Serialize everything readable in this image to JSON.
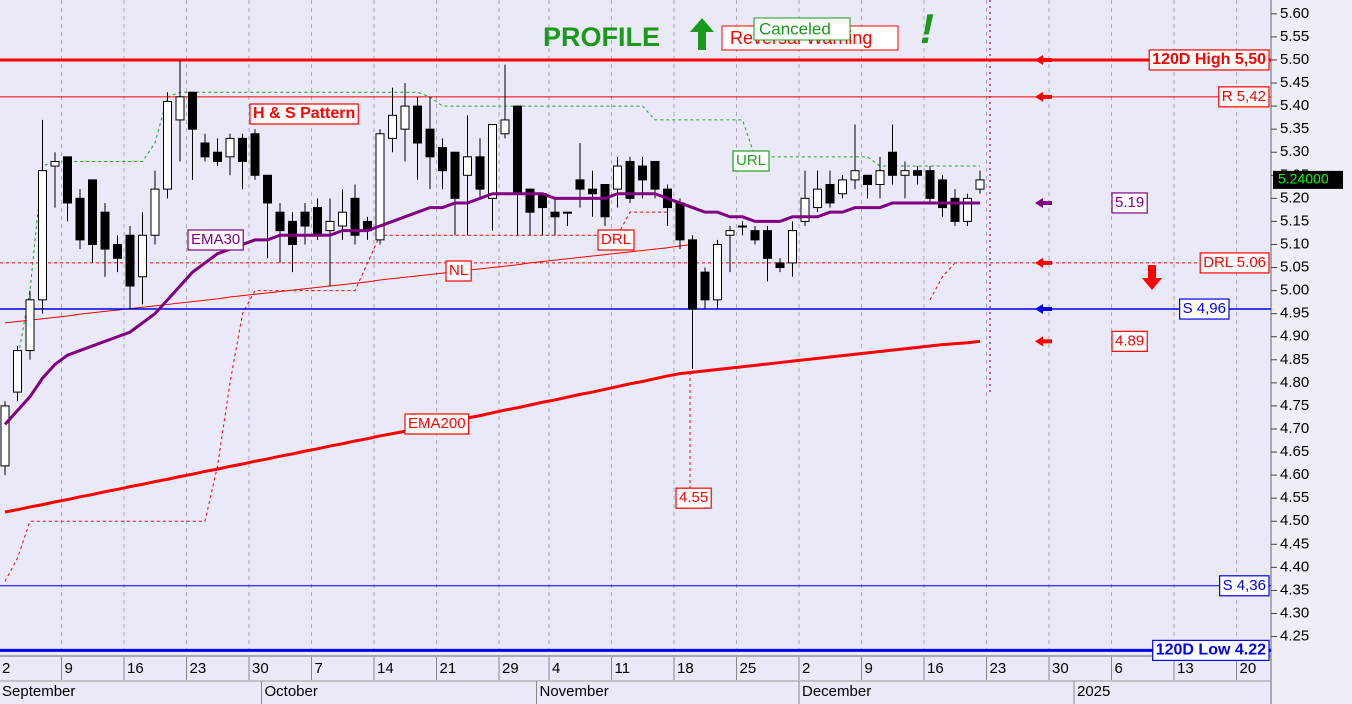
{
  "chart_data": {
    "type": "candlestick",
    "x": [
      "Sep 2",
      "Sep 3",
      "Sep 4",
      "Sep 5",
      "Sep 6",
      "Sep 9",
      "Sep 10",
      "Sep 11",
      "Sep 12",
      "Sep 13",
      "Sep 16",
      "Sep 17",
      "Sep 18",
      "Sep 19",
      "Sep 20",
      "Sep 23",
      "Sep 24",
      "Sep 25",
      "Sep 26",
      "Sep 27",
      "Sep 30",
      "Oct 1",
      "Oct 2",
      "Oct 3",
      "Oct 4",
      "Oct 7",
      "Oct 8",
      "Oct 9",
      "Oct 10",
      "Oct 11",
      "Oct 14",
      "Oct 15",
      "Oct 16",
      "Oct 17",
      "Oct 18",
      "Oct 21",
      "Oct 22",
      "Oct 23",
      "Oct 24",
      "Oct 25",
      "Oct 29",
      "Oct 30",
      "Oct 31",
      "Nov 1",
      "Nov 4",
      "Nov 5",
      "Nov 6",
      "Nov 7",
      "Nov 8",
      "Nov 11",
      "Nov 12",
      "Nov 13",
      "Nov 14",
      "Nov 15",
      "Nov 18",
      "Nov 19",
      "Nov 20",
      "Nov 21",
      "Nov 22",
      "Nov 25",
      "Nov 26",
      "Nov 27",
      "Nov 28",
      "Nov 29",
      "Dec 2",
      "Dec 3",
      "Dec 4",
      "Dec 5",
      "Dec 6",
      "Dec 9",
      "Dec 10",
      "Dec 11",
      "Dec 12",
      "Dec 13",
      "Dec 16",
      "Dec 17",
      "Dec 18",
      "Dec 19",
      "Dec 20"
    ],
    "open": [
      4.62,
      4.78,
      4.87,
      4.98,
      5.27,
      5.29,
      5.2,
      5.24,
      5.17,
      5.1,
      5.12,
      5.03,
      5.12,
      5.22,
      5.37,
      5.43,
      5.32,
      5.3,
      5.29,
      5.33,
      5.34,
      5.25,
      5.17,
      5.15,
      5.17,
      5.18,
      5.13,
      5.14,
      5.2,
      5.15,
      5.11,
      5.33,
      5.35,
      5.4,
      5.35,
      5.31,
      5.3,
      5.25,
      5.29,
      5.2,
      5.34,
      5.4,
      5.22,
      5.21,
      5.17,
      5.17,
      5.24,
      5.22,
      5.23,
      5.22,
      5.28,
      5.27,
      5.28,
      5.22,
      5.19,
      5.11,
      5.04,
      4.98,
      5.12,
      5.14,
      5.13,
      5.13,
      5.06,
      5.06,
      5.15,
      5.18,
      5.23,
      5.21,
      5.24,
      5.25,
      5.23,
      5.3,
      5.25,
      5.26,
      5.26,
      5.24,
      5.2,
      5.15,
      5.22
    ],
    "high": [
      4.76,
      4.88,
      5.0,
      5.37,
      5.3,
      5.29,
      5.22,
      5.24,
      5.19,
      5.12,
      5.14,
      5.17,
      5.26,
      5.43,
      5.5,
      5.43,
      5.34,
      5.33,
      5.34,
      5.34,
      5.35,
      5.25,
      5.19,
      5.17,
      5.19,
      5.2,
      5.2,
      5.22,
      5.23,
      5.16,
      5.35,
      5.44,
      5.45,
      5.42,
      5.42,
      5.33,
      5.3,
      5.38,
      5.33,
      5.36,
      5.49,
      5.4,
      5.22,
      5.21,
      5.2,
      5.17,
      5.32,
      5.26,
      5.23,
      5.29,
      5.29,
      5.29,
      5.28,
      5.23,
      5.2,
      5.12,
      5.05,
      5.11,
      5.14,
      5.15,
      5.14,
      5.14,
      5.07,
      5.15,
      5.26,
      5.26,
      5.26,
      5.25,
      5.36,
      5.25,
      5.29,
      5.36,
      5.28,
      5.27,
      5.27,
      5.25,
      5.22,
      5.21,
      5.26
    ],
    "low": [
      4.6,
      4.76,
      4.85,
      4.95,
      5.18,
      5.15,
      5.09,
      5.06,
      5.03,
      5.04,
      4.96,
      4.97,
      5.1,
      5.2,
      5.28,
      5.24,
      5.28,
      5.27,
      5.25,
      5.22,
      5.24,
      5.07,
      5.06,
      5.04,
      5.1,
      5.11,
      5.01,
      5.11,
      5.1,
      5.11,
      5.1,
      5.3,
      5.28,
      5.24,
      5.22,
      5.22,
      5.12,
      5.12,
      5.2,
      5.13,
      5.33,
      5.12,
      5.12,
      5.12,
      5.12,
      5.14,
      5.18,
      5.16,
      5.14,
      5.18,
      5.19,
      5.2,
      5.2,
      5.14,
      5.09,
      4.83,
      4.96,
      4.96,
      5.04,
      5.12,
      5.1,
      5.02,
      5.04,
      5.03,
      5.14,
      5.17,
      5.18,
      5.2,
      5.22,
      5.2,
      5.2,
      5.23,
      5.2,
      5.23,
      5.19,
      5.16,
      5.14,
      5.14,
      5.21
    ],
    "close": [
      4.75,
      4.87,
      4.98,
      5.26,
      5.28,
      5.19,
      5.11,
      5.1,
      5.09,
      5.07,
      5.01,
      5.12,
      5.22,
      5.41,
      5.42,
      5.35,
      5.29,
      5.28,
      5.33,
      5.28,
      5.25,
      5.19,
      5.13,
      5.1,
      5.14,
      5.12,
      5.15,
      5.17,
      5.12,
      5.13,
      5.34,
      5.38,
      5.4,
      5.32,
      5.29,
      5.26,
      5.2,
      5.29,
      5.22,
      5.36,
      5.37,
      5.21,
      5.17,
      5.18,
      5.16,
      5.17,
      5.22,
      5.21,
      5.16,
      5.27,
      5.2,
      5.24,
      5.22,
      5.18,
      5.11,
      4.96,
      4.98,
      5.1,
      5.13,
      5.14,
      5.11,
      5.07,
      5.05,
      5.13,
      5.2,
      5.22,
      5.19,
      5.24,
      5.26,
      5.23,
      5.26,
      5.25,
      5.26,
      5.25,
      5.2,
      5.18,
      5.15,
      5.2,
      5.24
    ],
    "series": [
      {
        "name": "EMA30",
        "color": "#800080",
        "style": "thick",
        "values": [
          4.71,
          4.74,
          4.77,
          4.81,
          4.84,
          4.86,
          4.87,
          4.88,
          4.89,
          4.9,
          4.91,
          4.93,
          4.95,
          4.98,
          5.01,
          5.04,
          5.06,
          5.08,
          5.09,
          5.1,
          5.11,
          5.11,
          5.12,
          5.12,
          5.12,
          5.12,
          5.12,
          5.13,
          5.13,
          5.13,
          5.14,
          5.15,
          5.16,
          5.17,
          5.18,
          5.18,
          5.19,
          5.19,
          5.2,
          5.21,
          5.21,
          5.21,
          5.21,
          5.21,
          5.2,
          5.2,
          5.2,
          5.2,
          5.2,
          5.21,
          5.21,
          5.21,
          5.21,
          5.2,
          5.19,
          5.18,
          5.17,
          5.17,
          5.16,
          5.16,
          5.15,
          5.15,
          5.15,
          5.16,
          5.16,
          5.16,
          5.17,
          5.17,
          5.18,
          5.18,
          5.18,
          5.19,
          5.19,
          5.19,
          5.19,
          5.19,
          5.19,
          5.19,
          5.19
        ]
      },
      {
        "name": "EMA200",
        "color": "#ff0000",
        "style": "thick",
        "values": [
          4.52,
          4.525,
          4.531,
          4.536,
          4.542,
          4.547,
          4.553,
          4.558,
          4.564,
          4.569,
          4.575,
          4.58,
          4.586,
          4.591,
          4.597,
          4.602,
          4.608,
          4.613,
          4.619,
          4.624,
          4.63,
          4.635,
          4.641,
          4.646,
          4.652,
          4.657,
          4.663,
          4.668,
          4.674,
          4.679,
          4.685,
          4.69,
          4.695,
          4.701,
          4.707,
          4.712,
          4.718,
          4.724,
          4.729,
          4.735,
          4.741,
          4.746,
          4.752,
          4.758,
          4.763,
          4.769,
          4.775,
          4.78,
          4.786,
          4.792,
          4.798,
          4.803,
          4.809,
          4.815,
          4.82,
          4.823,
          4.826,
          4.829,
          4.832,
          4.835,
          4.838,
          4.841,
          4.844,
          4.847,
          4.85,
          4.853,
          4.856,
          4.859,
          4.862,
          4.865,
          4.868,
          4.871,
          4.874,
          4.877,
          4.88,
          4.883,
          4.885,
          4.887,
          4.89
        ]
      },
      {
        "name": "URL",
        "color": "#22a022",
        "style": "dotted",
        "values": [
          null,
          4.85,
          5.0,
          5.27,
          5.28,
          5.28,
          5.28,
          5.28,
          5.28,
          5.28,
          5.28,
          5.28,
          5.32,
          5.42,
          5.43,
          5.43,
          5.43,
          5.43,
          5.43,
          5.43,
          5.43,
          5.43,
          5.43,
          5.43,
          5.43,
          5.43,
          5.43,
          5.43,
          5.43,
          5.43,
          5.43,
          5.43,
          5.43,
          5.43,
          5.42,
          5.4,
          5.4,
          5.4,
          5.4,
          5.4,
          5.4,
          5.4,
          5.4,
          5.4,
          5.4,
          5.4,
          5.4,
          5.4,
          5.4,
          5.4,
          5.4,
          5.4,
          5.37,
          5.37,
          5.37,
          5.37,
          5.37,
          5.37,
          5.37,
          5.37,
          5.29,
          5.29,
          5.29,
          5.29,
          5.29,
          5.29,
          5.29,
          5.29,
          5.29,
          5.29,
          5.27,
          5.27,
          5.27,
          5.27,
          5.27,
          5.27,
          5.27,
          5.27,
          5.27
        ]
      },
      {
        "name": "DRL",
        "color": "#ff0000",
        "style": "dotted",
        "values": [
          4.37,
          4.42,
          4.5,
          4.5,
          4.5,
          4.5,
          4.5,
          4.5,
          4.5,
          4.5,
          4.5,
          4.5,
          4.5,
          4.5,
          4.5,
          4.5,
          4.5,
          4.62,
          4.8,
          4.95,
          5.0,
          5.0,
          5.0,
          5.0,
          5.0,
          5.0,
          5.0,
          5.0,
          5.0,
          5.06,
          5.12,
          5.12,
          5.12,
          5.12,
          5.12,
          5.12,
          5.12,
          5.12,
          5.12,
          5.12,
          5.12,
          5.12,
          5.12,
          5.12,
          5.12,
          5.12,
          5.12,
          5.12,
          5.12,
          5.12,
          5.17,
          5.17,
          5.17,
          5.17,
          null,
          null,
          null,
          null,
          null,
          null,
          null,
          null,
          null,
          null,
          null,
          null,
          null,
          null,
          null,
          null,
          null,
          null,
          null,
          null,
          4.98,
          5.03,
          5.06,
          null,
          null
        ]
      },
      {
        "name": "NL",
        "color": "#ff0000",
        "style": "thin",
        "values": [
          4.93,
          4.933,
          4.936,
          4.939,
          4.942,
          4.945,
          4.949,
          4.952,
          4.955,
          4.958,
          4.961,
          4.964,
          4.967,
          4.97,
          4.973,
          4.976,
          4.979,
          4.982,
          4.986,
          4.989,
          4.992,
          4.995,
          4.998,
          5.001,
          5.004,
          5.007,
          5.01,
          5.013,
          5.016,
          5.019,
          5.023,
          5.026,
          5.029,
          5.032,
          5.035,
          5.038,
          5.041,
          5.044,
          5.047,
          5.05,
          5.053,
          5.056,
          5.06,
          5.063,
          5.066,
          5.069,
          5.072,
          5.075,
          5.078,
          5.081,
          5.084,
          5.087,
          5.09,
          5.093,
          5.097,
          5.1,
          null,
          null,
          null,
          null,
          null,
          null,
          null,
          null,
          null,
          null,
          null,
          null,
          null,
          null,
          null,
          null,
          null,
          null,
          null,
          null,
          null,
          null,
          null
        ]
      }
    ],
    "levels": [
      {
        "value": 5.5,
        "label": "120D High 5,50",
        "color": "#ff0000",
        "line_width": 3,
        "arrow": true
      },
      {
        "value": 5.42,
        "label": "R 5,42",
        "color": "#ff0000",
        "line_width": 1,
        "arrow": true
      },
      {
        "value": 5.06,
        "label": "DRL 5.06",
        "color": "#ff0000",
        "line_width": 1,
        "dotted": true,
        "arrow": true
      },
      {
        "value": 4.96,
        "label": "S 4,96",
        "color": "#0000ee",
        "line_width": 1.5,
        "arrow": true
      },
      {
        "value": 4.36,
        "label": "S 4,36",
        "color": "#0000ee",
        "line_width": 1,
        "arrow": false
      },
      {
        "value": 4.22,
        "label": "120D Low 4.22",
        "color": "#0000ee",
        "line_width": 3,
        "arrow": false
      }
    ],
    "markers": [
      {
        "value": 5.19,
        "color": "#800080"
      },
      {
        "value": 4.89,
        "color": "#ff0000"
      }
    ],
    "last_price": {
      "value": 5.24,
      "label": "5.24000"
    },
    "drl_low": 4.55,
    "pattern": "H & S Pattern",
    "annotations": {
      "profile": "PROFILE",
      "warning": "Reversal Warning",
      "canceled": "Canceled",
      "alert": "!"
    },
    "ylim": [
      4.21,
      5.63
    ],
    "yticks": [
      {
        "value": 5.6,
        "label": "5.60"
      },
      5.55,
      {
        "value": 5.5,
        "label": "5.50"
      },
      5.45,
      {
        "value": 5.4,
        "label": "5.40"
      },
      5.35,
      {
        "value": 5.3,
        "label": "5.30"
      },
      5.25,
      {
        "value": 5.2,
        "label": "5.20"
      },
      5.15,
      {
        "value": 5.1,
        "label": "5.10"
      },
      5.05,
      {
        "value": 5.0,
        "label": "5.00"
      },
      4.95,
      {
        "value": 4.9,
        "label": "4.90"
      },
      4.85,
      {
        "value": 4.8,
        "label": "4.80"
      },
      4.75,
      {
        "value": 4.7,
        "label": "4.70"
      },
      4.65,
      {
        "value": 4.6,
        "label": "4.60"
      },
      4.55,
      {
        "value": 4.5,
        "label": "4.50"
      },
      4.45,
      {
        "value": 4.4,
        "label": "4.40"
      },
      4.35,
      {
        "value": 4.3,
        "label": "4.30"
      },
      4.25
    ],
    "xticks": [
      {
        "value": "Sep 2",
        "label": "2"
      },
      {
        "value": "Sep 9",
        "label": "9"
      },
      {
        "value": "Sep 16",
        "label": "16"
      },
      {
        "value": "Sep 23",
        "label": "23"
      },
      {
        "value": "Sep 30",
        "label": "30"
      },
      {
        "value": "Oct 7",
        "label": "7"
      },
      {
        "value": "Oct 14",
        "label": "14"
      },
      {
        "value": "Oct 21",
        "label": "21"
      },
      {
        "value": "Oct 29",
        "label": "29"
      },
      {
        "value": "Nov 4",
        "label": "4"
      },
      {
        "value": "Nov 11",
        "label": "11"
      },
      {
        "value": "Nov 18",
        "label": "18"
      },
      {
        "value": "Nov 25",
        "label": "25"
      },
      {
        "value": "Dec 2",
        "label": "2"
      },
      {
        "value": "Dec 9",
        "label": "9"
      },
      {
        "value": "Dec 16",
        "label": "16"
      },
      {
        "value": "Dec 23",
        "label": "23"
      },
      {
        "value": "Dec 30",
        "label": "30"
      },
      {
        "value": "Jan 6",
        "label": "6"
      },
      {
        "value": "Jan 13",
        "label": "13"
      },
      {
        "value": "Jan 20",
        "label": "20"
      }
    ],
    "month_labels": [
      {
        "value": "Sep 2",
        "label": "September"
      },
      {
        "value": "Oct 1",
        "label": "October"
      },
      {
        "value": "Nov 1",
        "label": "November"
      },
      {
        "value": "Dec 2",
        "label": "December"
      },
      {
        "value": "Jan 1",
        "label": "2025"
      }
    ],
    "grid": true
  }
}
